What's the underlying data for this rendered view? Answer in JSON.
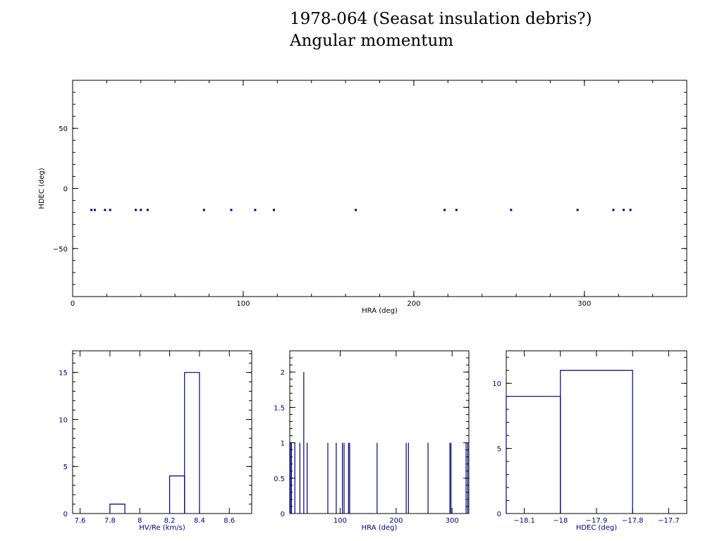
{
  "title": "1978-064 (Seasat insulation debris?)",
  "subtitle": "Angular momentum",
  "colors": {
    "axis": "#000000",
    "data": "#000080"
  },
  "chart_data": [
    {
      "type": "scatter",
      "id": "main",
      "xlabel": "HRA (deg)",
      "ylabel": "HDEC (deg)",
      "xlim": [
        0,
        360
      ],
      "ylim": [
        -90,
        90
      ],
      "xticks": [
        0,
        100,
        200,
        300
      ],
      "yticks": [
        -50,
        0,
        50
      ],
      "grid": false,
      "points": [
        [
          11,
          -17.9
        ],
        [
          13,
          -17.9
        ],
        [
          19,
          -17.9
        ],
        [
          22,
          -17.9
        ],
        [
          37,
          -17.9
        ],
        [
          40,
          -17.9
        ],
        [
          44,
          -17.9
        ],
        [
          77,
          -17.9
        ],
        [
          93,
          -17.9
        ],
        [
          107,
          -17.9
        ],
        [
          118,
          -17.9
        ],
        [
          166,
          -17.9
        ],
        [
          218,
          -17.9
        ],
        [
          225,
          -17.9
        ],
        [
          257,
          -17.9
        ],
        [
          296,
          -17.9
        ],
        [
          317,
          -17.9
        ],
        [
          323,
          -17.9
        ],
        [
          327,
          -17.9
        ]
      ]
    },
    {
      "type": "bar",
      "id": "hist_hv",
      "style": "step",
      "xlabel": "HV/Re (km/s)",
      "ylabel": "",
      "xlim": [
        7.55,
        8.75
      ],
      "ylim": [
        0,
        17.3
      ],
      "xticks": [
        7.6,
        7.8,
        8,
        8.2,
        8.4,
        8.6
      ],
      "yticks": [
        0,
        5,
        10,
        15
      ],
      "bins": [
        {
          "x0": 7.8,
          "x1": 7.9,
          "value": 1
        },
        {
          "x0": 8.2,
          "x1": 8.3,
          "value": 4
        },
        {
          "x0": 8.3,
          "x1": 8.4,
          "value": 15
        }
      ]
    },
    {
      "type": "bar",
      "id": "hist_hra",
      "style": "spike",
      "xlabel": "HRA (deg)",
      "ylabel": "",
      "xlim": [
        10,
        330
      ],
      "ylim": [
        0,
        2.3
      ],
      "xticks": [
        100,
        200,
        300
      ],
      "yticks": [
        0,
        0.5,
        1,
        1.5,
        2
      ],
      "spikes": [
        [
          11,
          1
        ],
        [
          13,
          1
        ],
        [
          19,
          1
        ],
        [
          28,
          1
        ],
        [
          35,
          2
        ],
        [
          41,
          1
        ],
        [
          78,
          1
        ],
        [
          93,
          1
        ],
        [
          104,
          1
        ],
        [
          107,
          1
        ],
        [
          115,
          1
        ],
        [
          117,
          1
        ],
        [
          166,
          1
        ],
        [
          218,
          1
        ],
        [
          222,
          1
        ],
        [
          257,
          1
        ],
        [
          296,
          1
        ],
        [
          298,
          1
        ],
        [
          325,
          1
        ],
        [
          328,
          1
        ]
      ]
    },
    {
      "type": "bar",
      "id": "hist_hdec",
      "style": "step",
      "xlabel": "HDEC (deg)",
      "ylabel": "",
      "xlim": [
        -18.15,
        -17.65
      ],
      "ylim": [
        0,
        12.5
      ],
      "xticks": [
        -18.1,
        -18,
        -17.9,
        -17.8,
        -17.7
      ],
      "yticks": [
        0,
        5,
        10
      ],
      "bins": [
        {
          "x0": -18.15,
          "x1": -18.0,
          "value": 9
        },
        {
          "x0": -18.0,
          "x1": -17.8,
          "value": 11
        }
      ]
    }
  ]
}
